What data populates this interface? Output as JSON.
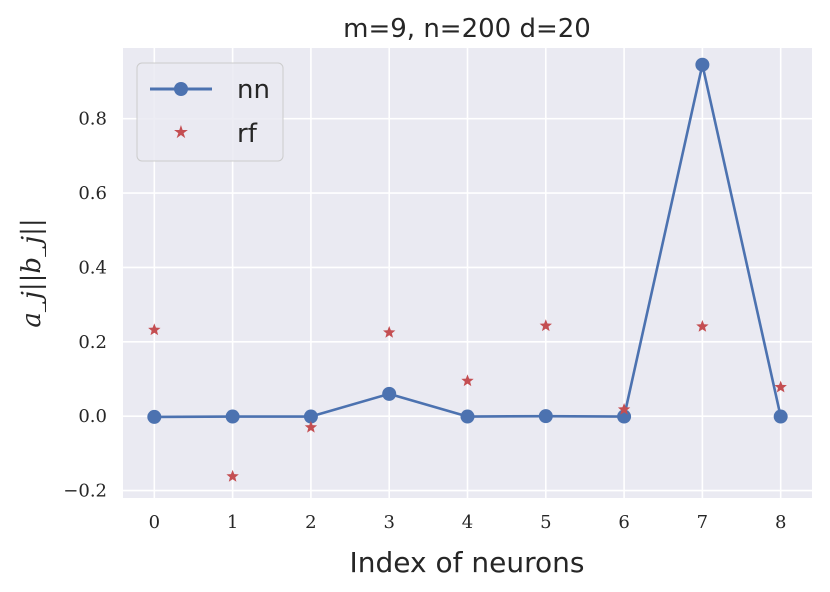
{
  "chart_data": {
    "type": "line",
    "title": "m=9, n=200 d=20",
    "xlabel": "Index of neurons",
    "ylabel": "a_j||b_j||",
    "x": [
      0,
      1,
      2,
      3,
      4,
      5,
      6,
      7,
      8
    ],
    "xlim": [
      -0.4,
      8.4
    ],
    "ylim": [
      -0.22,
      0.99
    ],
    "xticks": [
      "0",
      "1",
      "2",
      "3",
      "4",
      "5",
      "6",
      "7",
      "8"
    ],
    "yticks": [
      -0.2,
      0.0,
      0.2,
      0.4,
      0.6,
      0.8
    ],
    "ytick_labels": [
      "−0.2",
      "0.0",
      "0.2",
      "0.4",
      "0.6",
      "0.8"
    ],
    "grid": true,
    "legend_position": "top-left",
    "series": [
      {
        "name": "nn",
        "style": "line-circle",
        "color": "#4c72b0",
        "values": [
          -0.002,
          -0.001,
          -0.001,
          0.06,
          -0.001,
          0.0,
          -0.001,
          0.945,
          -0.001
        ]
      },
      {
        "name": "rf",
        "style": "star",
        "color": "#c44e52",
        "values": [
          0.232,
          -0.162,
          -0.03,
          0.225,
          0.095,
          0.243,
          0.018,
          0.241,
          0.078
        ]
      }
    ],
    "colors": {
      "background": "#eaeaf2",
      "grid": "#ffffff",
      "text": "#262626"
    }
  }
}
